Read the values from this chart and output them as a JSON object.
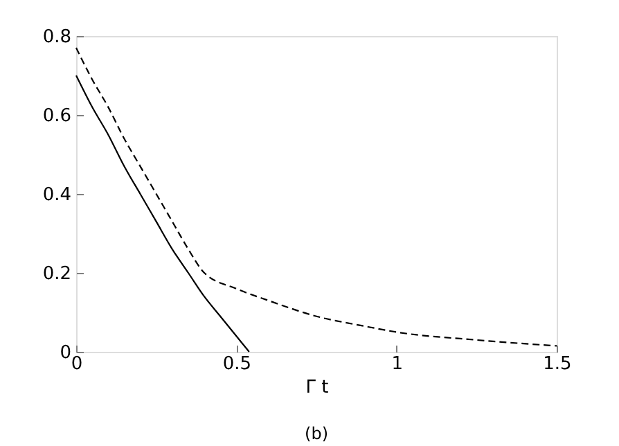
{
  "chart_data": {
    "type": "line",
    "xlabel": "Γ t",
    "annotations": [
      "(b)"
    ],
    "xlim": [
      0,
      1.5
    ],
    "xticks": [
      0,
      0.5,
      1,
      1.5
    ],
    "ylim": [
      0,
      0.8
    ],
    "yticks": [
      0,
      0.2,
      0.4,
      0.6,
      0.8
    ],
    "grid": false,
    "marker": "none",
    "series": [
      {
        "color": "#000000",
        "line_style": "solid",
        "x": [
          0,
          0.05,
          0.1,
          0.15,
          0.2,
          0.25,
          0.3,
          0.35,
          0.4,
          0.45,
          0.5,
          0.54
        ],
        "values": [
          0.7,
          0.62,
          0.55,
          0.47,
          0.4,
          0.33,
          0.26,
          0.2,
          0.14,
          0.09,
          0.04,
          0
        ]
      },
      {
        "color": "#000000",
        "line_style": "dashed",
        "x": [
          0,
          0.05,
          0.1,
          0.15,
          0.2,
          0.25,
          0.3,
          0.35,
          0.4,
          0.5,
          0.6,
          0.75,
          0.9,
          1.0,
          1.25,
          1.5
        ],
        "values": [
          0.77,
          0.69,
          0.62,
          0.54,
          0.47,
          0.4,
          0.33,
          0.26,
          0.2,
          0.16,
          0.13,
          0.09,
          0.065,
          0.05,
          0.03,
          0.015
        ]
      }
    ]
  }
}
